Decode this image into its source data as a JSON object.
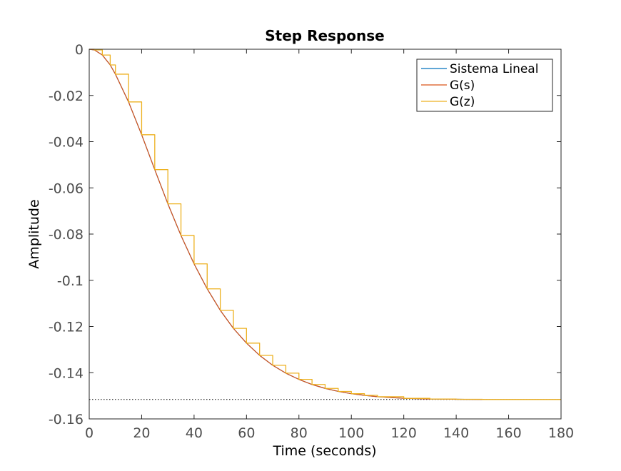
{
  "chart_data": {
    "type": "line",
    "title": "Step Response",
    "xlabel": "Time (seconds)",
    "ylabel": "Amplitude",
    "xlim": [
      0,
      180
    ],
    "ylim": [
      -0.16,
      0
    ],
    "xticks": [
      0,
      20,
      40,
      60,
      80,
      100,
      120,
      140,
      160,
      180
    ],
    "yticks": [
      0,
      -0.02,
      -0.04,
      -0.06,
      -0.08,
      -0.1,
      -0.12,
      -0.14,
      -0.16
    ],
    "xtick_labels": [
      "0",
      "20",
      "40",
      "60",
      "80",
      "100",
      "120",
      "140",
      "160",
      "180"
    ],
    "ytick_labels": [
      "0",
      "-0.02",
      "-0.04",
      "-0.06",
      "-0.08",
      "-0.1",
      "-0.12",
      "-0.14",
      "-0.16"
    ],
    "grid": false,
    "legend_position": "top-right",
    "x": [
      0,
      2,
      5,
      8,
      10,
      15,
      20,
      25,
      30,
      35,
      40,
      45,
      50,
      55,
      60,
      65,
      70,
      75,
      80,
      85,
      90,
      95,
      100,
      105,
      110,
      120,
      130,
      140,
      150,
      160,
      170,
      180
    ],
    "series": [
      {
        "name": "Sistema Lineal",
        "color": "#0072BD",
        "values": [
          0,
          -0.0003,
          -0.0025,
          -0.0068,
          -0.0108,
          -0.0228,
          -0.037,
          -0.0521,
          -0.0669,
          -0.0806,
          -0.0929,
          -0.1037,
          -0.113,
          -0.1208,
          -0.1272,
          -0.1325,
          -0.1368,
          -0.1402,
          -0.1429,
          -0.1451,
          -0.1468,
          -0.1481,
          -0.1491,
          -0.1498,
          -0.1504,
          -0.1511,
          -0.1514,
          -0.1515,
          -0.1516,
          -0.1516,
          -0.1516,
          -0.1516
        ]
      },
      {
        "name": "G(s)",
        "color": "#D95319",
        "values": [
          0,
          -0.0003,
          -0.0025,
          -0.0068,
          -0.0108,
          -0.0228,
          -0.037,
          -0.0521,
          -0.0669,
          -0.0806,
          -0.0929,
          -0.1037,
          -0.113,
          -0.1208,
          -0.1272,
          -0.1325,
          -0.1368,
          -0.1402,
          -0.1429,
          -0.1451,
          -0.1468,
          -0.1481,
          -0.1491,
          -0.1498,
          -0.1504,
          -0.1511,
          -0.1514,
          -0.1515,
          -0.1516,
          -0.1516,
          -0.1516,
          -0.1516
        ]
      },
      {
        "name": "G(z)",
        "color": "#EDB120",
        "step": true,
        "values": [
          0,
          -0.0003,
          -0.0025,
          -0.0068,
          -0.0108,
          -0.0228,
          -0.037,
          -0.0521,
          -0.0669,
          -0.0806,
          -0.0929,
          -0.1037,
          -0.113,
          -0.1208,
          -0.1272,
          -0.1325,
          -0.1368,
          -0.1402,
          -0.1429,
          -0.1451,
          -0.1468,
          -0.1481,
          -0.1491,
          -0.1498,
          -0.1504,
          -0.1511,
          -0.1514,
          -0.1515,
          -0.1516,
          -0.1516,
          -0.1516,
          -0.1516
        ]
      }
    ],
    "steady_state": {
      "value": -0.1516,
      "color": "#000000",
      "style": "dotted"
    }
  }
}
